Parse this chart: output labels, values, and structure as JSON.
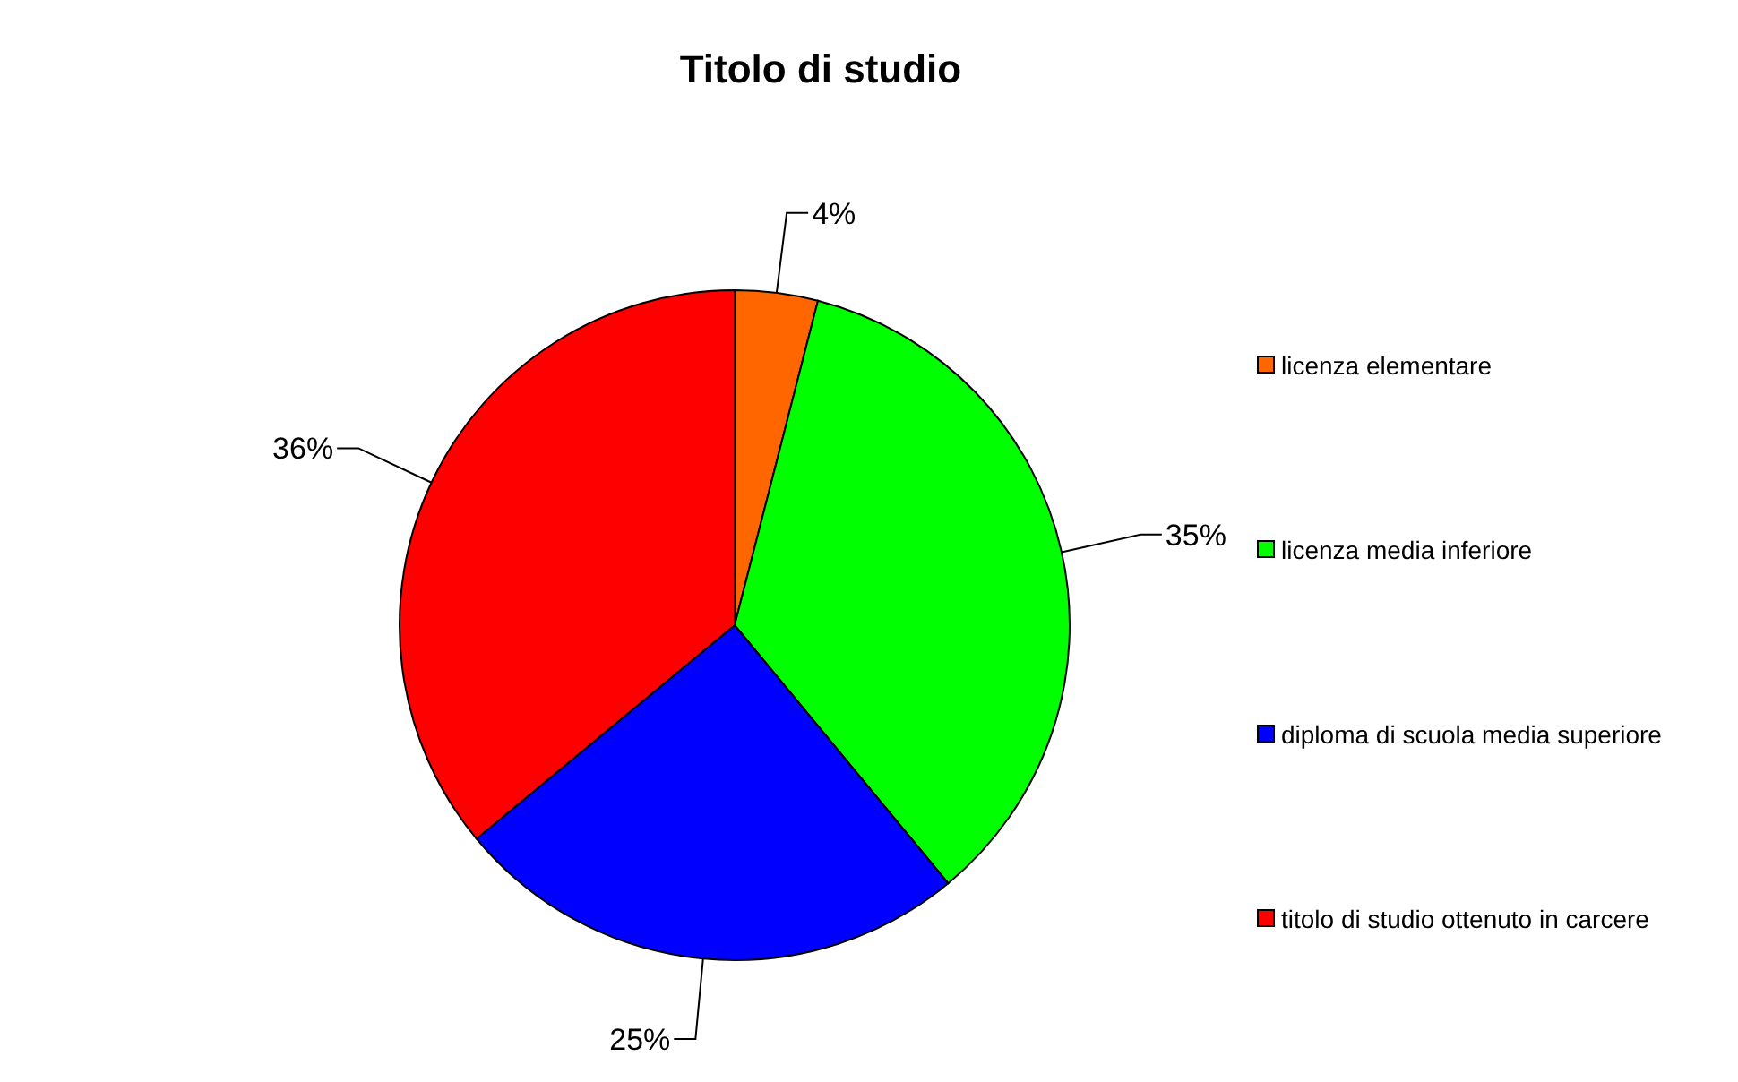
{
  "chart_data": {
    "type": "pie",
    "title": "Titolo di studio",
    "categories": [
      "licenza elementare",
      "licenza media inferiore",
      "diploma di scuola media superiore",
      "titolo di studio ottenuto in carcere"
    ],
    "values": [
      4,
      35,
      25,
      36
    ],
    "colors": [
      "#ff6600",
      "#00ff00",
      "#0000ff",
      "#ff0000"
    ],
    "value_labels": [
      "4%",
      "35%",
      "25%",
      "36%"
    ],
    "legend": "right"
  }
}
